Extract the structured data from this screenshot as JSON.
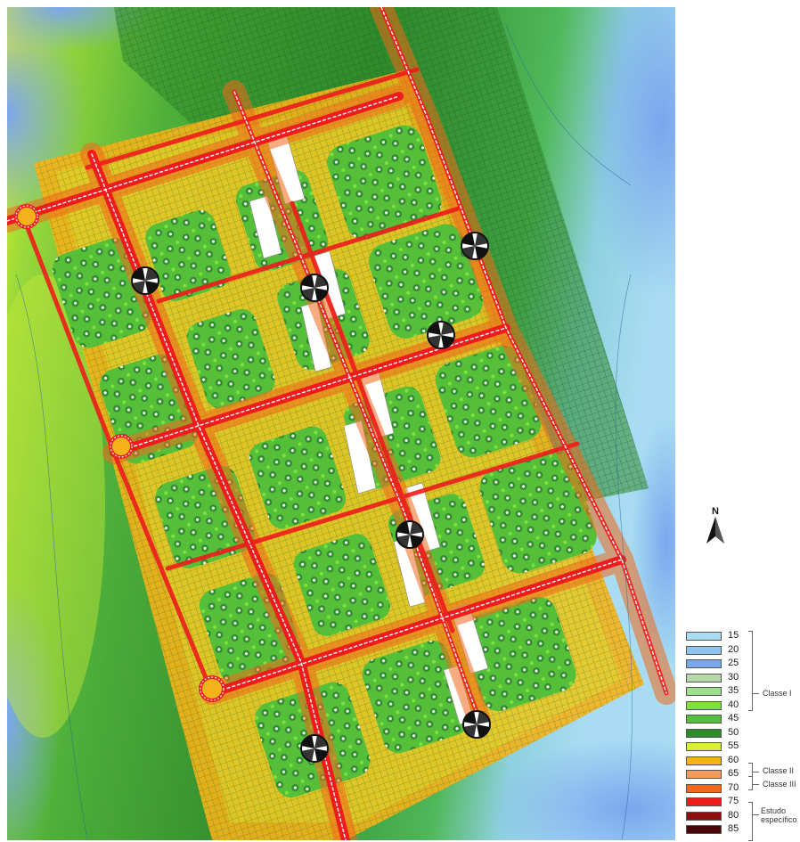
{
  "legend": {
    "levels": [
      {
        "value": "15",
        "color": "#a9dcf2"
      },
      {
        "value": "20",
        "color": "#8fc4ec"
      },
      {
        "value": "25",
        "color": "#7aa6ee"
      },
      {
        "value": "30",
        "color": "#b6d8a8"
      },
      {
        "value": "35",
        "color": "#9ee08e"
      },
      {
        "value": "40",
        "color": "#7ee23a"
      },
      {
        "value": "45",
        "color": "#55bf3a"
      },
      {
        "value": "50",
        "color": "#2f8a2c"
      },
      {
        "value": "55",
        "color": "#d8ee3a"
      },
      {
        "value": "60",
        "color": "#f5b21a"
      },
      {
        "value": "65",
        "color": "#f59a5a"
      },
      {
        "value": "70",
        "color": "#f06a1a"
      },
      {
        "value": "75",
        "color": "#ee1c1c"
      },
      {
        "value": "80",
        "color": "#8a0f0f"
      },
      {
        "value": "85",
        "color": "#4a0606"
      }
    ],
    "classes": {
      "classe_1": "Classe I",
      "classe_2": "Classe II",
      "classe_3": "Classe III",
      "estudo_1": "Estudo",
      "estudo_2": "específico"
    }
  },
  "north": {
    "label": "N"
  },
  "icons": {
    "receptor": "receptor-point-icon",
    "north": "north-arrow-icon"
  },
  "colors": {
    "background_blue": "#7aa6ee",
    "background_green": "#3a9a3a",
    "grid_green": "#1f5f22",
    "road": "#ee1c1c",
    "road_halo": "#f5b21a"
  }
}
